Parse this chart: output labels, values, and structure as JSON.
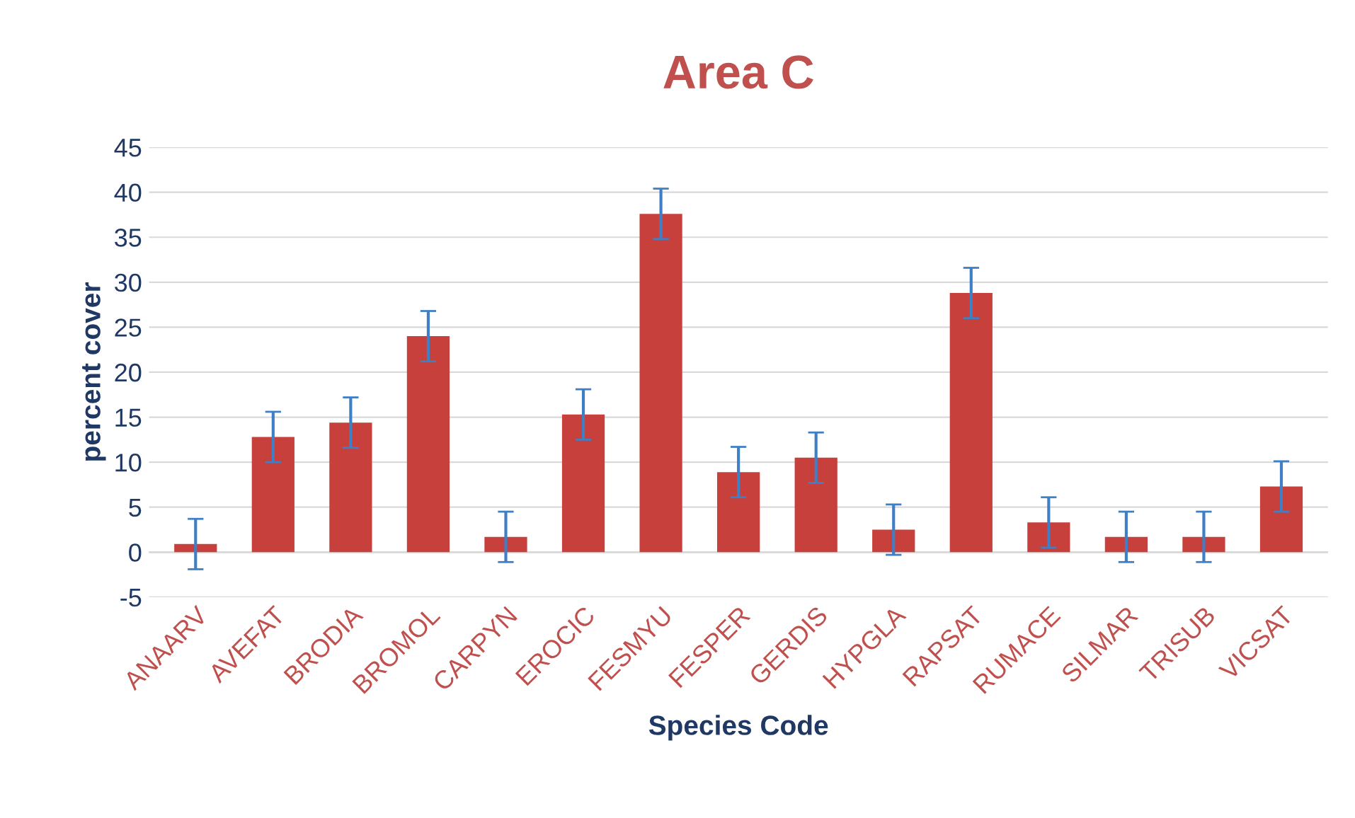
{
  "chart_data": {
    "type": "bar",
    "title": "Area C",
    "xlabel": "Species Code",
    "ylabel": "percent cover",
    "categories": [
      "ANAARV",
      "AVEFAT",
      "BRODIA",
      "BROMOL",
      "CARPYN",
      "EROCIC",
      "FESMYU",
      "FESPER",
      "GERDIS",
      "HYPGLA",
      "RAPSAT",
      "RUMACE",
      "SILMAR",
      "TRISUB",
      "VICSAT"
    ],
    "series": [
      {
        "color": "#c8403b",
        "values": [
          0.9,
          12.8,
          14.4,
          24.0,
          1.7,
          15.3,
          37.6,
          8.9,
          10.5,
          2.5,
          28.8,
          3.3,
          1.7,
          1.7,
          7.3
        ],
        "errors": [
          2.8,
          2.8,
          2.8,
          2.8,
          2.8,
          2.8,
          2.8,
          2.8,
          2.8,
          2.8,
          2.8,
          2.8,
          2.8,
          2.8,
          2.8
        ]
      }
    ],
    "ylim": [
      -5,
      45
    ],
    "yticks": [
      -5,
      0,
      5,
      10,
      15,
      20,
      25,
      30,
      35,
      40,
      45
    ],
    "grid": "y"
  }
}
